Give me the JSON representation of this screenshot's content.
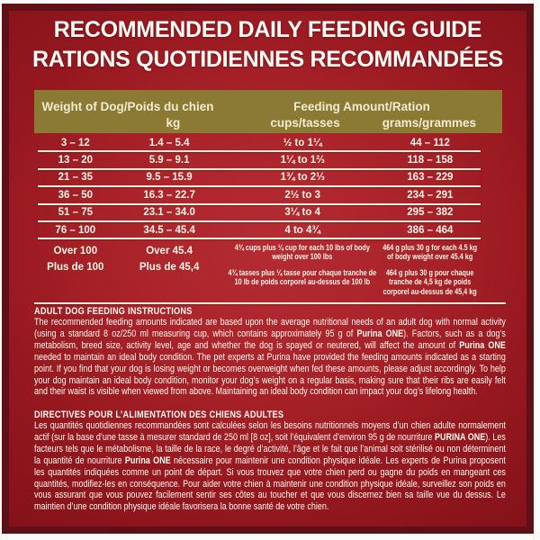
{
  "title": {
    "line1": "RECOMMENDED DAILY FEEDING GUIDE",
    "line2": "RATIONS QUOTIDIENNES RECOMMANDÉES"
  },
  "table": {
    "header": {
      "weight": "Weight of Dog/Poids du chien",
      "weight_unit": "kg",
      "feeding": "Feeding Amount/Ration",
      "cups_unit": "cups/tasses",
      "grams_unit": "grams/grammes"
    },
    "rows": [
      {
        "lbs": "3 – 12",
        "kg": "1.4 – 5.4",
        "cups": "½ to 1¼",
        "grams": "44 – 112"
      },
      {
        "lbs": "13 – 20",
        "kg": "5.9 – 9.1",
        "cups": "1¼ to 1⅔",
        "grams": "118 – 158"
      },
      {
        "lbs": "21 – 35",
        "kg": "9.5 – 15.9",
        "cups": "1¾ to 2⅓",
        "grams": "163 – 229"
      },
      {
        "lbs": "36 – 50",
        "kg": "16.3 – 22.7",
        "cups": "2½ to 3",
        "grams": "234 – 291"
      },
      {
        "lbs": "51 – 75",
        "kg": "23.1 – 34.0",
        "cups": "3¼ to 4",
        "grams": "295 – 382"
      },
      {
        "lbs": "76 – 100",
        "kg": "34.5 – 45.4",
        "cups": "4 to 4¾",
        "grams": "386 – 464"
      }
    ],
    "over_row": {
      "lbs_en": "Over 100",
      "lbs_fr": "Plus de 100",
      "kg_en": "Over 45.4",
      "kg_fr": "Plus de 45,4",
      "cups_en": "4¾ cups plus ¼ cup for each 10 lbs of body weight over 100 lbs",
      "cups_fr": "4¾ tasses plus ¼ tasse pour chaque tranche de 10 lb de poids corporel au-dessus de 100 lb",
      "grams_en": "464 g plus 30 g for each 4.5 kg of body weight over 45.4 kg",
      "grams_fr": "464 g plus 30 g pour chaque tranche de 4,5 kg de poids corporel au-dessus de 45,4 kg"
    }
  },
  "sections": {
    "english": {
      "heading": "ADULT DOG FEEDING INSTRUCTIONS",
      "p1": "The recommended feeding amounts indicated are based upon the average nutritional needs of an adult dog with normal activity (using a standard 8 oz/250 ml measuring cup, which contains approximately 95 g of ",
      "b1": "Purina ONE",
      "p2": "). Factors, such as a dog’s metabolism, breed size, activity level, age and whether the dog is spayed or neutered, will affect the amount of ",
      "b2": "Purina ONE",
      "p3": " needed to maintain an ideal body condition. The pet experts at Purina have provided the feeding amounts indicated as a starting point. If you find that your dog is losing weight or becomes overweight when fed these amounts, please adjust accordingly. To help your dog maintain an ideal body condition, monitor your dog’s weight on a regular basis, making sure that their ribs are easily felt and their waist is visible when viewed from above. Maintaining an ideal body condition can impact your dog’s lifelong health."
    },
    "french": {
      "heading": "DIRECTIVES POUR L’ALIMENTATION DES CHIENS ADULTES",
      "p1": "Les quantités quotidiennes recommandées sont calculées selon les besoins nutritionnels moyens d’un chien adulte normalement actif (sur la base d’une tasse à mesurer standard de 250 ml [8 oz], soit l’équivalent d’environ 95 g de nourriture ",
      "b1": "PURINA ONE",
      "p2": "). Les facteurs tels que le métabolisme, la taille de la race, le degré d’activité, l’âge et le fait que l’animal soit stérilisé ou non déterminent la quantité de nourriture ",
      "b2": "Purina ONE",
      "p3": " nécessaire pour maintenir une condition physique idéale. Les experts de Purina proposent les quantités indiquées comme un point de départ. Si vous trouvez que votre chien perd ou gagne du poids en mangeant ces quantités, modifiez-les en conséquence. Pour aider votre chien à maintenir une condition physique idéale, surveillez son poids en vous assurant que vous pouvez facilement sentir ses côtes au toucher et que vous discernez bien sa taille vue du dessus. Le maintien d’une condition physique idéale favorisera la bonne santé de votre chien."
    }
  },
  "colors": {
    "label_red_center": "#b52c33",
    "label_red_edge": "#84121a",
    "frame_maroon": "#5e1016",
    "header_olive": "#8a7a33",
    "rule_cream": "#f4eedd",
    "text_cream": "#faf5e8"
  }
}
